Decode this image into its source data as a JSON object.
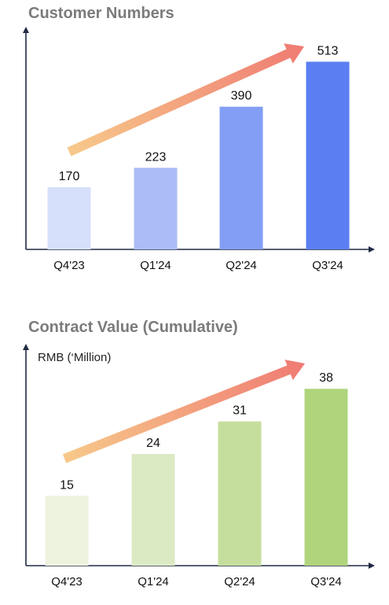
{
  "chart_data": [
    {
      "type": "bar",
      "title": "Customer Numbers",
      "ylabel": "",
      "categories": [
        "Q4'23",
        "Q1'24",
        "Q2'24",
        "Q3'24"
      ],
      "values": [
        170,
        223,
        390,
        513
      ],
      "data_labels": [
        "170",
        "223",
        "390",
        "513"
      ],
      "ylim": [
        0,
        600
      ],
      "colors": [
        "#d6e0fb",
        "#abbcf7",
        "#829ef5",
        "#5b7ef2"
      ],
      "trend_arrow": {
        "from": "#f7c98a",
        "to": "#ef7b73"
      },
      "grid": false
    },
    {
      "type": "bar",
      "title": "Contract Value (Cumulative)",
      "ylabel": "RMB (‘Million)",
      "categories": [
        "Q4'23",
        "Q1'24",
        "Q2'24",
        "Q3'24"
      ],
      "values": [
        15,
        24,
        31,
        38
      ],
      "data_labels": [
        "15",
        "24",
        "31",
        "38"
      ],
      "ylim": [
        0,
        47
      ],
      "colors": [
        "#edf3df",
        "#dceac4",
        "#c6de9d",
        "#b0d47c"
      ],
      "trend_arrow": {
        "from": "#f7c98a",
        "to": "#ef7b73"
      },
      "grid": false
    }
  ]
}
